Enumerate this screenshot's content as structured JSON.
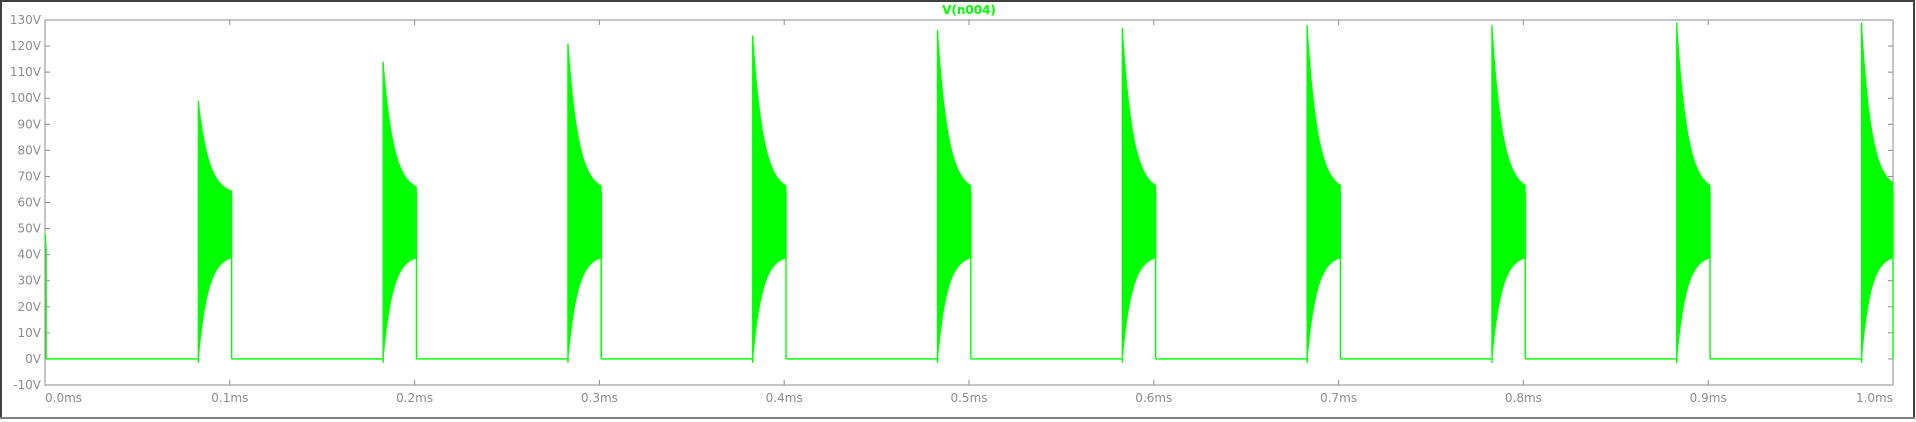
{
  "colors": {
    "trace": "#00ff00",
    "axis": "#8c8c8c",
    "background": "#ffffff",
    "frame": "#404040"
  },
  "chart_data": {
    "type": "line",
    "title": "",
    "xlabel": "",
    "ylabel": "",
    "grid": false,
    "legend": "none",
    "xlim": [
      0.0,
      1.0
    ],
    "ylim": [
      -10,
      130
    ],
    "x_ticks": [
      "0.0ms",
      "0.1ms",
      "0.2ms",
      "0.3ms",
      "0.4ms",
      "0.5ms",
      "0.6ms",
      "0.7ms",
      "0.8ms",
      "0.9ms",
      "1.0ms"
    ],
    "y_ticks": [
      "130V",
      "120V",
      "110V",
      "100V",
      "90V",
      "80V",
      "70V",
      "60V",
      "50V",
      "40V",
      "30V",
      "20V",
      "10V",
      "0V",
      "-10V"
    ],
    "x_tick_values_ms": [
      0.0,
      0.1,
      0.2,
      0.3,
      0.4,
      0.5,
      0.6,
      0.7,
      0.8,
      0.9,
      1.0
    ],
    "y_tick_values_v": [
      130,
      120,
      110,
      100,
      90,
      80,
      70,
      60,
      50,
      40,
      30,
      20,
      10,
      0,
      -10
    ],
    "series": [
      {
        "name": "V(n004)",
        "color": "#00ff00",
        "baseline_v": 0,
        "pulses": [
          {
            "start_ms": 0.083,
            "end_ms": 0.101,
            "peak_v": 99,
            "upper_end_v": 63,
            "lower_end_v": 40
          },
          {
            "start_ms": 0.183,
            "end_ms": 0.201,
            "peak_v": 114,
            "upper_end_v": 64,
            "lower_end_v": 40
          },
          {
            "start_ms": 0.283,
            "end_ms": 0.301,
            "peak_v": 121,
            "upper_end_v": 64,
            "lower_end_v": 40
          },
          {
            "start_ms": 0.383,
            "end_ms": 0.401,
            "peak_v": 124,
            "upper_end_v": 64,
            "lower_end_v": 40
          },
          {
            "start_ms": 0.483,
            "end_ms": 0.501,
            "peak_v": 126,
            "upper_end_v": 64,
            "lower_end_v": 40
          },
          {
            "start_ms": 0.583,
            "end_ms": 0.601,
            "peak_v": 127,
            "upper_end_v": 64,
            "lower_end_v": 40
          },
          {
            "start_ms": 0.683,
            "end_ms": 0.701,
            "peak_v": 128,
            "upper_end_v": 64,
            "lower_end_v": 40
          },
          {
            "start_ms": 0.783,
            "end_ms": 0.801,
            "peak_v": 128,
            "upper_end_v": 64,
            "lower_end_v": 40
          },
          {
            "start_ms": 0.883,
            "end_ms": 0.901,
            "peak_v": 129,
            "upper_end_v": 64,
            "lower_end_v": 40
          },
          {
            "start_ms": 0.983,
            "end_ms": 1.0,
            "peak_v": 129,
            "upper_end_v": 65,
            "lower_end_v": 40
          }
        ]
      }
    ]
  }
}
